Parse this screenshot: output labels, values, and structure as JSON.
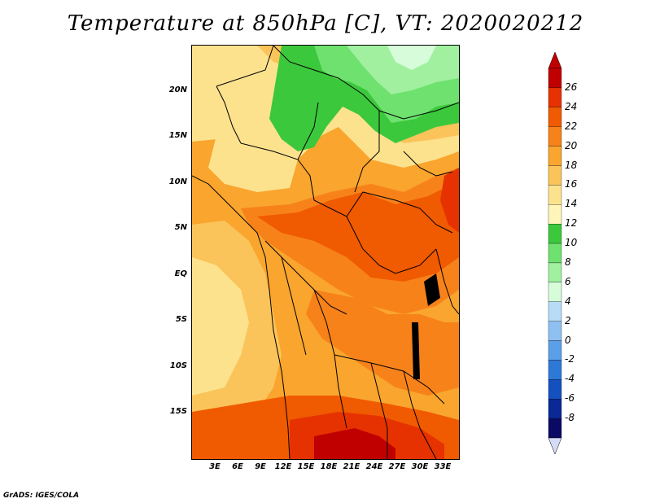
{
  "title": "Temperature at 850hPa [C], VT: 2020020212",
  "credit": "GrADS: IGES/COLA",
  "lat_labels": [
    "20N",
    "15N",
    "10N",
    "5N",
    "EQ",
    "5S",
    "10S",
    "15S"
  ],
  "lon_labels": [
    "3E",
    "6E",
    "9E",
    "12E",
    "15E",
    "18E",
    "21E",
    "24E",
    "27E",
    "30E",
    "33E"
  ],
  "colorbar": {
    "labels": [
      "26",
      "24",
      "22",
      "20",
      "18",
      "16",
      "14",
      "12",
      "10",
      "8",
      "6",
      "4",
      "2",
      "0",
      "-2",
      "-4",
      "-6",
      "-8"
    ],
    "colors": [
      "#c00000",
      "#e63200",
      "#f05a00",
      "#f7821a",
      "#f9a52e",
      "#fbc45a",
      "#fde28e",
      "#fff5b8",
      "#3cc83c",
      "#6ee16e",
      "#a0f0a0",
      "#d6fcda",
      "#b6dcf8",
      "#8ec0f2",
      "#5aa0e8",
      "#2e78d8",
      "#1450c0",
      "#0a2896",
      "#0a0a64"
    ]
  },
  "map": {
    "extent": {
      "lon_min": 0,
      "lon_max": 35,
      "lat_min": -20,
      "lat_max": 24
    },
    "colors": {
      "hot": "#e63200",
      "warm": "#f05a00",
      "orange": "#f7821a",
      "light_orange": "#f9a52e",
      "tan": "#fbc45a",
      "pale": "#fde28e",
      "green": "#3cc83c",
      "light_green": "#6ee16e",
      "pale_green": "#a0f0a0",
      "very_pale": "#d6fcda"
    }
  }
}
